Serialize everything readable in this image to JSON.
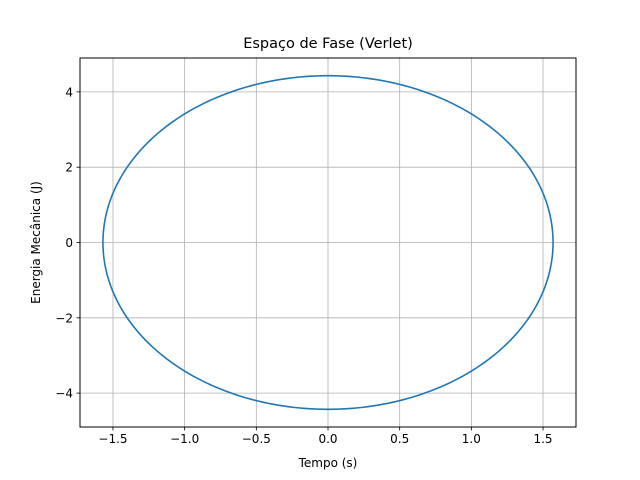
{
  "chart_data": {
    "type": "line",
    "title": "Espaço de Fase (Verlet)",
    "xlabel": "Tempo (s)",
    "ylabel": "Energia Mecânica (J)",
    "xlim": [
      -1.73,
      1.73
    ],
    "ylim": [
      -4.9,
      4.9
    ],
    "grid": true,
    "xticks": [
      -1.5,
      -1.0,
      -0.5,
      0.0,
      0.5,
      1.0,
      1.5
    ],
    "xtick_labels": [
      "−1.5",
      "−1.0",
      "−0.5",
      "0.0",
      "0.5",
      "1.0",
      "1.5"
    ],
    "yticks": [
      -4,
      -2,
      0,
      2,
      4
    ],
    "ytick_labels": [
      "−4",
      "−2",
      "0",
      "2",
      "4"
    ],
    "series": [
      {
        "color": "#1f77b4",
        "shape": "ellipse",
        "center": [
          0,
          0
        ],
        "x_amplitude": 1.57,
        "y_amplitude": 4.43,
        "x": [
          1.57,
          1.36,
          0.785,
          0.0,
          -0.785,
          -1.36,
          -1.57,
          -1.36,
          -0.785,
          0.0,
          0.785,
          1.36,
          1.57
        ],
        "y": [
          0.0,
          2.215,
          3.836,
          4.43,
          3.836,
          2.215,
          0.0,
          -2.215,
          -3.836,
          -4.43,
          -3.836,
          -2.215,
          0.0
        ]
      }
    ]
  }
}
